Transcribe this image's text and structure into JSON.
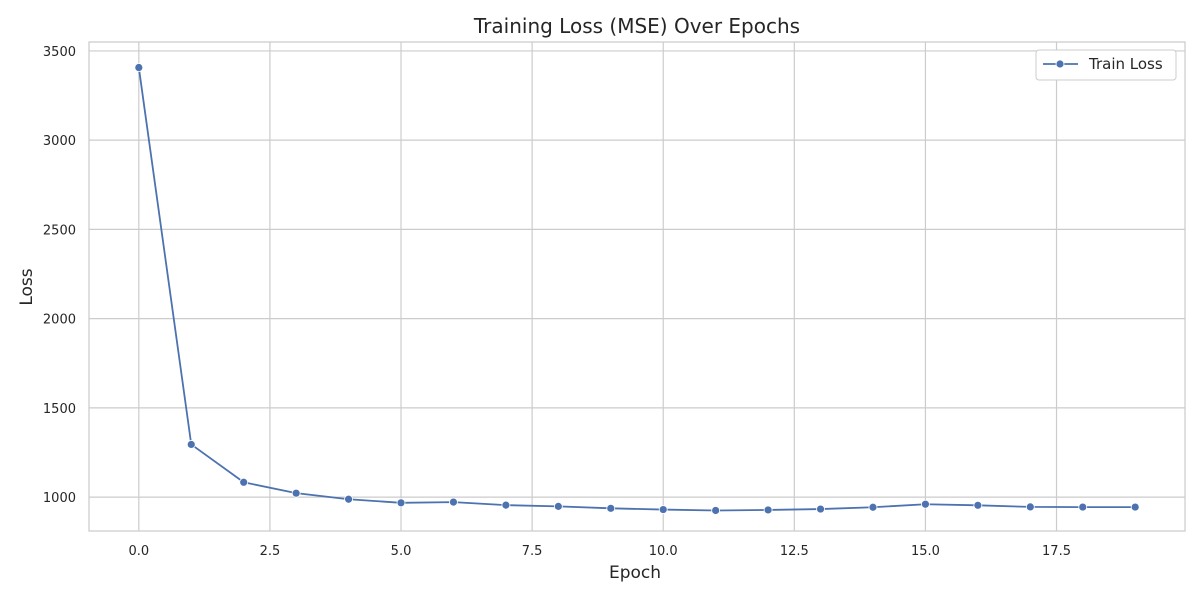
{
  "chart_data": {
    "type": "line",
    "title": "Training Loss (MSE) Over Epochs",
    "xlabel": "Epoch",
    "ylabel": "Loss",
    "xlim": [
      -0.95,
      19.95
    ],
    "ylim": [
      810,
      3550
    ],
    "x_ticks": [
      0.0,
      2.5,
      5.0,
      7.5,
      10.0,
      12.5,
      15.0,
      17.5
    ],
    "x_tick_labels": [
      "0.0",
      "2.5",
      "5.0",
      "7.5",
      "10.0",
      "12.5",
      "15.0",
      "17.5"
    ],
    "y_ticks": [
      1000,
      1500,
      2000,
      2500,
      3000,
      3500
    ],
    "y_tick_labels": [
      "1000",
      "1500",
      "2000",
      "2500",
      "3000",
      "3500"
    ],
    "grid": true,
    "legend_position": "top-right",
    "series": [
      {
        "name": "Train Loss",
        "color": "#4c72b0",
        "marker": "circle",
        "x": [
          0,
          1,
          2,
          3,
          4,
          5,
          6,
          7,
          8,
          9,
          10,
          11,
          12,
          13,
          14,
          15,
          16,
          17,
          18,
          19
        ],
        "y": [
          3407,
          1295,
          1083,
          1022,
          988,
          968,
          972,
          955,
          948,
          937,
          930,
          925,
          928,
          933,
          943,
          960,
          954,
          945,
          944,
          944
        ]
      }
    ]
  }
}
